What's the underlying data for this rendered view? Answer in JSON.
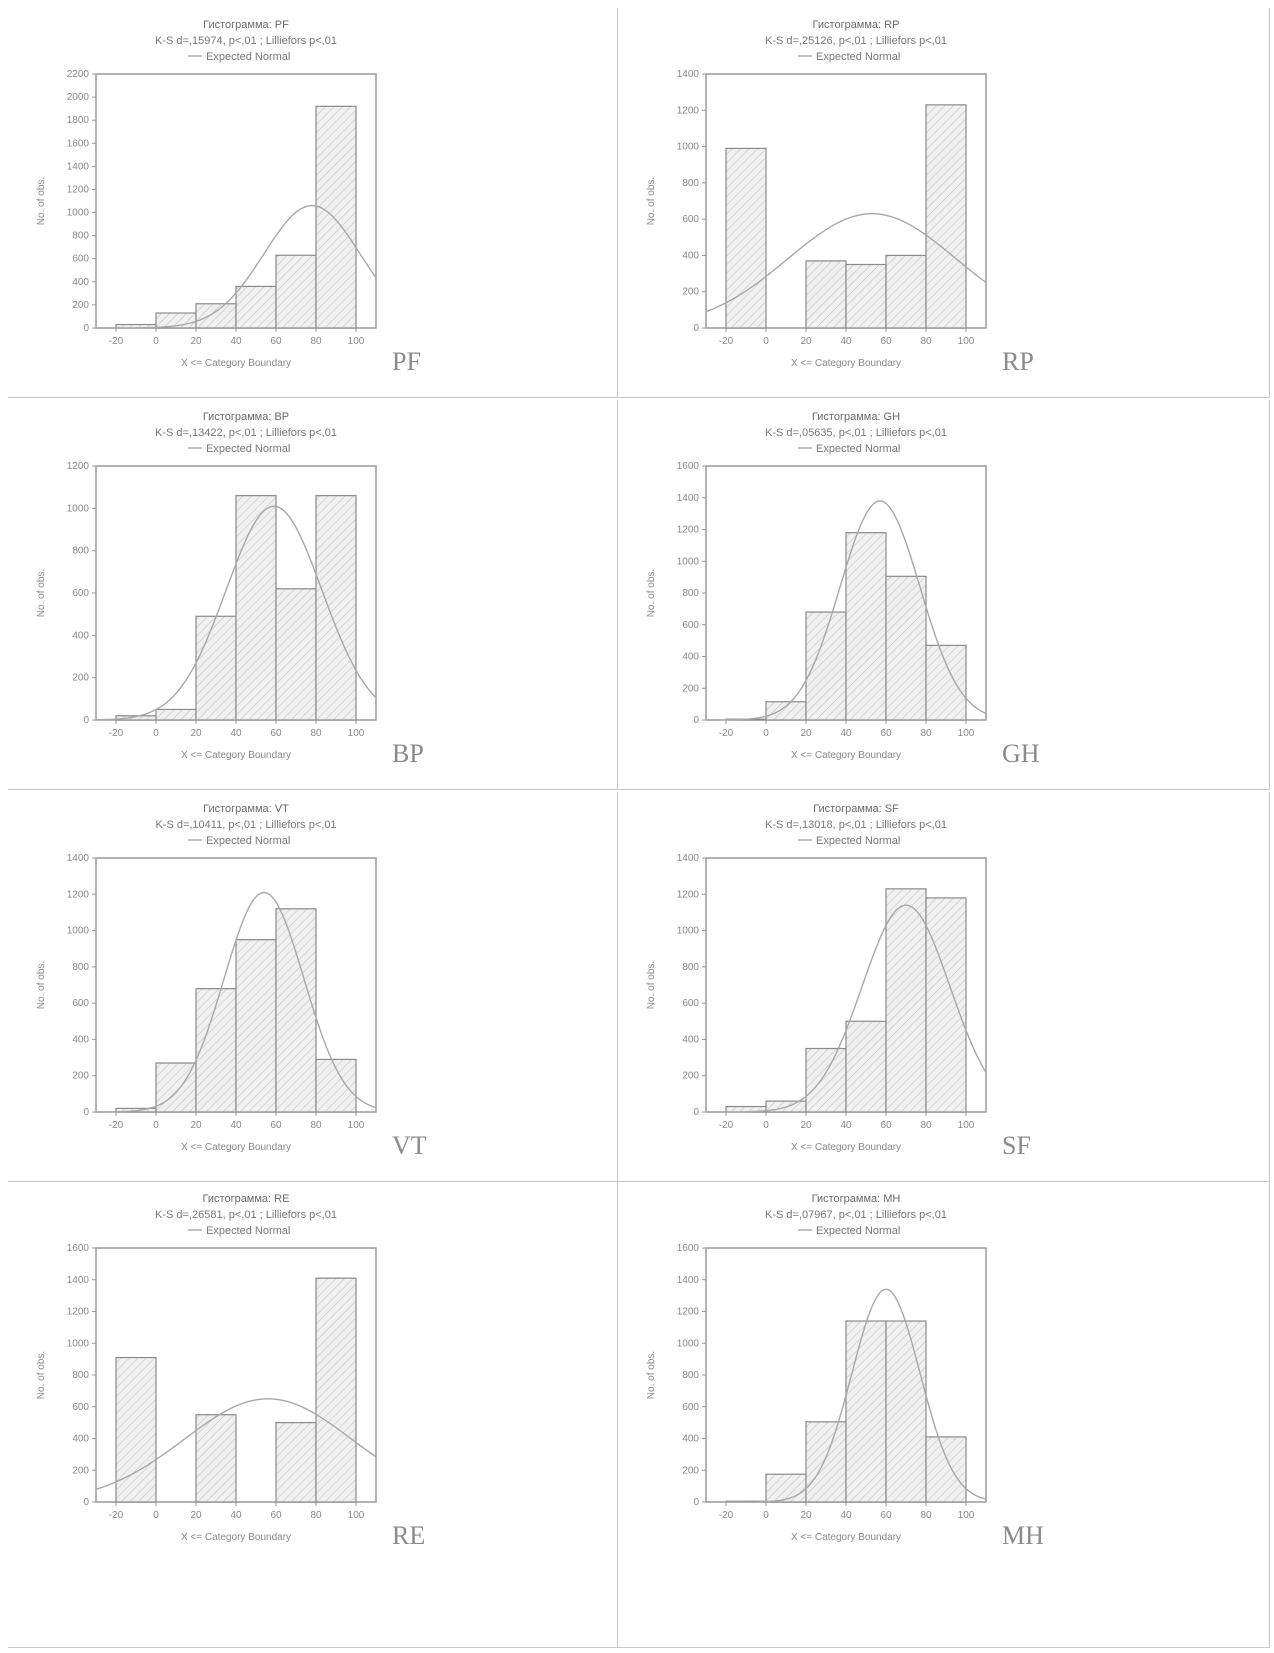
{
  "chart_data": [
    {
      "code": "PF",
      "type": "histogram",
      "title": "Гистограмма: PF",
      "subtitle": "K-S d=,15974, p<,01 ; Lilliefors p<,01",
      "legend": "Expected Normal",
      "xlabel": "X <= Category Boundary",
      "ylabel": "No. of obs.",
      "xlim": [
        -30,
        110
      ],
      "ylim": [
        0,
        2200
      ],
      "yticks": [
        0,
        200,
        400,
        600,
        800,
        1000,
        1200,
        1400,
        1600,
        1800,
        2000,
        2200
      ],
      "xticks": [
        -20,
        0,
        20,
        40,
        60,
        80,
        100
      ],
      "bins": [
        [
          -20,
          0,
          30
        ],
        [
          0,
          20,
          130
        ],
        [
          20,
          40,
          210
        ],
        [
          40,
          60,
          360
        ],
        [
          60,
          80,
          630
        ],
        [
          80,
          100,
          1920
        ]
      ],
      "normal": {
        "mean": 78,
        "sd": 24,
        "peak": 1060
      }
    },
    {
      "code": "RP",
      "type": "histogram",
      "title": "Гистограмма: RP",
      "subtitle": "K-S d=,25126, p<,01 ; Lilliefors p<,01",
      "legend": "Expected Normal",
      "xlabel": "X <= Category Boundary",
      "ylabel": "No. of obs.",
      "xlim": [
        -30,
        110
      ],
      "ylim": [
        0,
        1400
      ],
      "yticks": [
        0,
        200,
        400,
        600,
        800,
        1000,
        1200,
        1400
      ],
      "xticks": [
        -20,
        0,
        20,
        40,
        60,
        80,
        100
      ],
      "bins": [
        [
          -20,
          0,
          990
        ],
        [
          20,
          40,
          370
        ],
        [
          40,
          60,
          350
        ],
        [
          60,
          80,
          400
        ],
        [
          80,
          100,
          1230
        ]
      ],
      "normal": {
        "mean": 53,
        "sd": 42,
        "peak": 630
      }
    },
    {
      "code": "BP",
      "type": "histogram",
      "title": "Гистограмма: BP",
      "subtitle": "K-S d=,13422, p<,01 ; Lilliefors p<,01",
      "legend": "Expected Normal",
      "xlabel": "X <= Category Boundary",
      "ylabel": "No. of obs.",
      "xlim": [
        -30,
        110
      ],
      "ylim": [
        0,
        1200
      ],
      "yticks": [
        0,
        200,
        400,
        600,
        800,
        1000,
        1200
      ],
      "xticks": [
        -20,
        0,
        20,
        40,
        60,
        80,
        100
      ],
      "bins": [
        [
          -20,
          0,
          20
        ],
        [
          0,
          20,
          50
        ],
        [
          20,
          40,
          490
        ],
        [
          40,
          60,
          1060
        ],
        [
          60,
          80,
          620
        ],
        [
          80,
          100,
          1060
        ]
      ],
      "normal": {
        "mean": 59,
        "sd": 24,
        "peak": 1010
      }
    },
    {
      "code": "GH",
      "type": "histogram",
      "title": "Гистограмма: GH",
      "subtitle": "K-S d=,05635, p<,01 ; Lilliefors p<,01",
      "legend": "Expected Normal",
      "xlabel": "X <= Category Boundary",
      "ylabel": "No. of obs.",
      "xlim": [
        -30,
        110
      ],
      "ylim": [
        0,
        1600
      ],
      "yticks": [
        0,
        200,
        400,
        600,
        800,
        1000,
        1200,
        1400,
        1600
      ],
      "xticks": [
        -20,
        0,
        20,
        40,
        60,
        80,
        100
      ],
      "bins": [
        [
          -20,
          0,
          5
        ],
        [
          0,
          20,
          115
        ],
        [
          20,
          40,
          680
        ],
        [
          40,
          60,
          1180
        ],
        [
          60,
          80,
          905
        ],
        [
          80,
          100,
          470
        ]
      ],
      "normal": {
        "mean": 57,
        "sd": 20,
        "peak": 1380
      }
    },
    {
      "code": "VT",
      "type": "histogram",
      "title": "Гистограмма: VT",
      "subtitle": "K-S d=,10411, p<,01 ; Lilliefors p<,01",
      "legend": "Expected Normal",
      "xlabel": "X <= Category Boundary",
      "ylabel": "No. of obs.",
      "xlim": [
        -30,
        110
      ],
      "ylim": [
        0,
        1400
      ],
      "yticks": [
        0,
        200,
        400,
        600,
        800,
        1000,
        1200,
        1400
      ],
      "xticks": [
        -20,
        0,
        20,
        40,
        60,
        80,
        100
      ],
      "bins": [
        [
          -20,
          0,
          20
        ],
        [
          0,
          20,
          270
        ],
        [
          20,
          40,
          680
        ],
        [
          40,
          60,
          950
        ],
        [
          60,
          80,
          1120
        ],
        [
          80,
          100,
          290
        ]
      ],
      "normal": {
        "mean": 54,
        "sd": 20,
        "peak": 1210
      }
    },
    {
      "code": "SF",
      "type": "histogram",
      "title": "Гистограмма: SF",
      "subtitle": "K-S d=,13018, p<,01 ; Lilliefors p<,01",
      "legend": "Expected Normal",
      "xlabel": "X <= Category Boundary",
      "ylabel": "No. of obs.",
      "xlim": [
        -30,
        110
      ],
      "ylim": [
        0,
        1400
      ],
      "yticks": [
        0,
        200,
        400,
        600,
        800,
        1000,
        1200,
        1400
      ],
      "xticks": [
        -20,
        0,
        20,
        40,
        60,
        80,
        100
      ],
      "bins": [
        [
          -20,
          0,
          30
        ],
        [
          0,
          20,
          60
        ],
        [
          20,
          40,
          350
        ],
        [
          40,
          60,
          500
        ],
        [
          60,
          80,
          1230
        ],
        [
          80,
          100,
          1180
        ]
      ],
      "normal": {
        "mean": 70,
        "sd": 22,
        "peak": 1140
      }
    },
    {
      "code": "RE",
      "type": "histogram",
      "title": "Гистограмма: RE",
      "subtitle": "K-S d=,26581, p<,01 ; Lilliefors p<,01",
      "legend": "Expected Normal",
      "xlabel": "X <= Category Boundary",
      "ylabel": "No. of obs.",
      "xlim": [
        -30,
        110
      ],
      "ylim": [
        0,
        1600
      ],
      "yticks": [
        0,
        200,
        400,
        600,
        800,
        1000,
        1200,
        1400,
        1600
      ],
      "xticks": [
        -20,
        0,
        20,
        40,
        60,
        80,
        100
      ],
      "bins": [
        [
          -20,
          0,
          910
        ],
        [
          20,
          40,
          550
        ],
        [
          60,
          80,
          500
        ],
        [
          80,
          100,
          1410
        ]
      ],
      "normal": {
        "mean": 56,
        "sd": 42,
        "peak": 650
      }
    },
    {
      "code": "MH",
      "type": "histogram",
      "title": "Гистограмма: MH",
      "subtitle": "K-S d=,07967, p<,01 ; Lilliefors p<,01",
      "legend": "Expected Normal",
      "xlabel": "X <= Category Boundary",
      "ylabel": "No. of obs.",
      "xlim": [
        -30,
        110
      ],
      "ylim": [
        0,
        1600
      ],
      "yticks": [
        0,
        200,
        400,
        600,
        800,
        1000,
        1200,
        1400,
        1600
      ],
      "xticks": [
        -20,
        0,
        20,
        40,
        60,
        80,
        100
      ],
      "bins": [
        [
          -20,
          0,
          5
        ],
        [
          0,
          20,
          175
        ],
        [
          20,
          40,
          505
        ],
        [
          40,
          60,
          1140
        ],
        [
          60,
          80,
          1140
        ],
        [
          80,
          100,
          410
        ]
      ],
      "normal": {
        "mean": 60,
        "sd": 17,
        "peak": 1340
      }
    }
  ]
}
